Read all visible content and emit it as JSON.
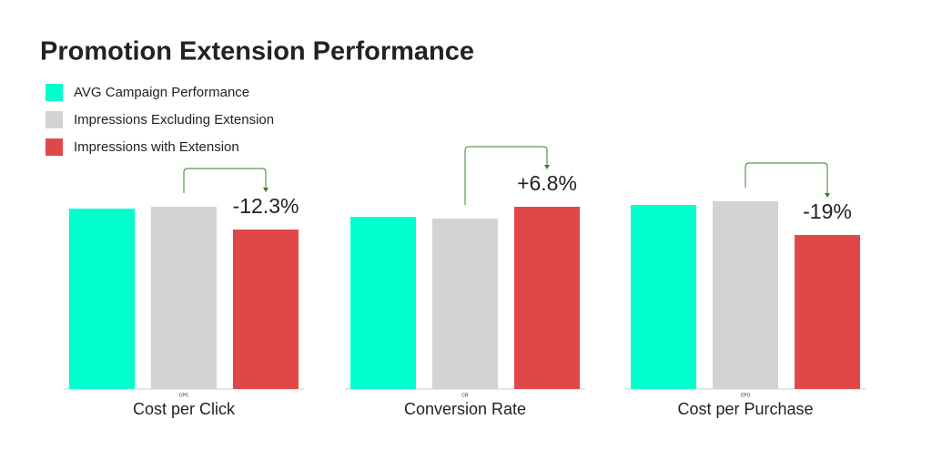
{
  "title": "Promotion Extension Performance",
  "legend": [
    {
      "name": "AVG Campaign Performance",
      "color": "#00ffcc"
    },
    {
      "name": "Impressions Excluding Extension",
      "color": "#d3d3d3"
    },
    {
      "name": "Impressions with Extension",
      "color": "#e04848"
    }
  ],
  "chart_data": [
    {
      "type": "bar",
      "x_label": "Cost per Click",
      "metric": "CPC",
      "values": [
        198,
        200,
        175
      ],
      "ylim": [
        0,
        210
      ],
      "annotation": "-12.3%",
      "annotation_color": "#3a7d2c"
    },
    {
      "type": "bar",
      "x_label": "Conversion Rate",
      "metric": "CR",
      "values": [
        189,
        187,
        200
      ],
      "ylim": [
        0,
        210
      ],
      "annotation": "+6.8%",
      "annotation_color": "#3a7d2c"
    },
    {
      "type": "bar",
      "x_label": "Cost per Purchase",
      "metric": "CPO",
      "values": [
        202,
        206,
        169
      ],
      "ylim": [
        0,
        210
      ],
      "annotation": "-19%",
      "annotation_color": "#3a7d2c"
    }
  ]
}
